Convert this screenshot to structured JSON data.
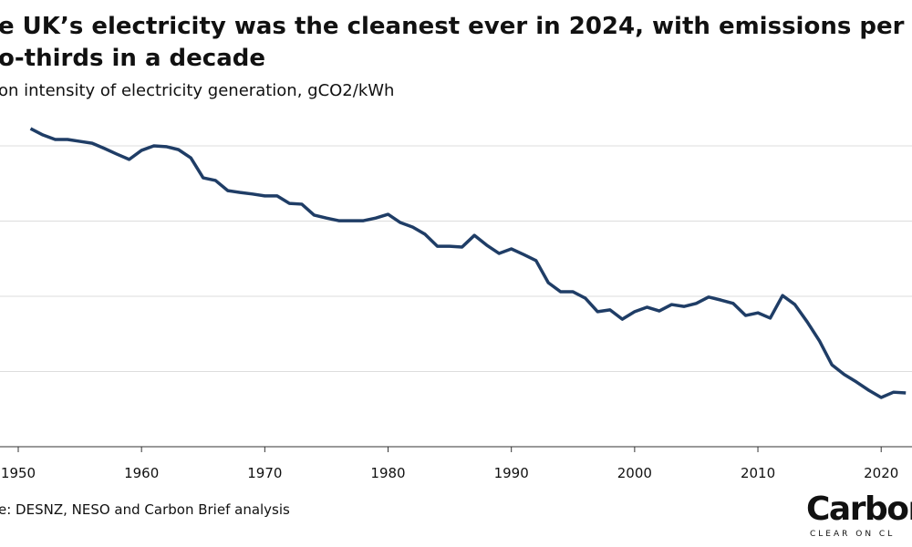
{
  "chart_data": {
    "type": "line",
    "title": [
      "e UK’s electricity was the cleanest ever in 2024, with emissions per unit down",
      "o-thirds in a decade"
    ],
    "subtitle": "on intensity of electricity generation, gCO2/kWh",
    "source": "e: DESNZ, NESO and Carbon Brief analysis",
    "logo": "CarbonBri",
    "logo_tagline": "CLEAR ON CL",
    "x": [
      1951,
      1952,
      1953,
      1954,
      1955,
      1956,
      1957,
      1958,
      1959,
      1960,
      1961,
      1962,
      1963,
      1964,
      1965,
      1966,
      1967,
      1968,
      1969,
      1970,
      1971,
      1972,
      1973,
      1974,
      1975,
      1976,
      1977,
      1978,
      1979,
      1980,
      1981,
      1982,
      1983,
      1984,
      1985,
      1986,
      1987,
      1988,
      1989,
      1990,
      1991,
      1992,
      1993,
      1994,
      1995,
      1996,
      1997,
      1998,
      1999,
      2000,
      2001,
      2002,
      2003,
      2004,
      2005,
      2006,
      2007,
      2008,
      2009,
      2010,
      2011,
      2012,
      2013,
      2014,
      2015,
      2016,
      2017,
      2018,
      2019,
      2020,
      2021,
      2022
    ],
    "series": [
      {
        "color": "#1f3d66",
        "values": [
          846,
          829,
          817,
          817,
          812,
          807,
          793,
          778,
          764,
          788,
          800,
          798,
          790,
          768,
          715,
          708,
          681,
          676,
          672,
          667,
          667,
          647,
          645,
          616,
          608,
          601,
          601,
          601,
          608,
          618,
          596,
          584,
          565,
          533,
          533,
          531,
          562,
          536,
          514,
          526,
          511,
          495,
          436,
          412,
          412,
          395,
          359,
          364,
          339,
          359,
          371,
          361,
          378,
          373,
          381,
          398,
          390,
          381,
          349,
          356,
          342,
          402,
          378,
          332,
          281,
          218,
          192,
          172,
          150,
          131,
          145,
          143
        ]
      }
    ],
    "xlim": [
      1950,
      2022.5
    ],
    "xticks": [
      1950,
      1960,
      1970,
      1980,
      1990,
      2000,
      2010,
      2020
    ],
    "ylim": [
      0,
      900
    ],
    "yticks": [
      0,
      200,
      400,
      600,
      800
    ],
    "grid": true
  }
}
